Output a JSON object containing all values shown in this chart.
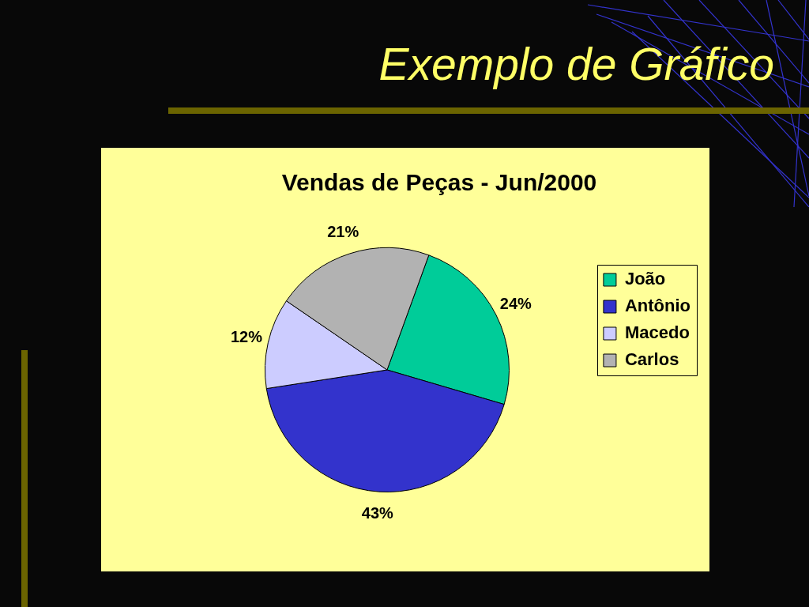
{
  "chart_data": {
    "type": "pie",
    "title": "Exemplo de Gráfico",
    "subtitle": "Vendas de Peças - Jun/2000",
    "categories": [
      "João",
      "Antônio",
      "Macedo",
      "Carlos"
    ],
    "values": [
      24,
      43,
      12,
      21
    ],
    "colors": [
      "#00cc99",
      "#3333cc",
      "#ccccff",
      "#b2b2b2"
    ],
    "value_labels": [
      "24%",
      "43%",
      "12%",
      "21%"
    ],
    "legend": "right"
  }
}
